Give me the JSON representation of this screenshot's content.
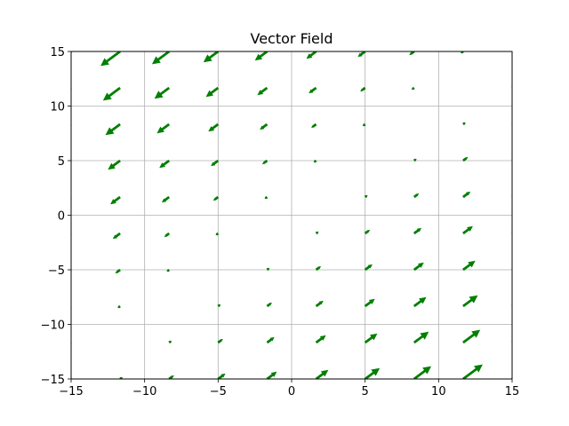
{
  "chart_data": {
    "type": "quiver",
    "title": "Vector Field",
    "xlabel": "",
    "ylabel": "",
    "xlim": [
      -15,
      15
    ],
    "ylim": [
      -15,
      15
    ],
    "x_ticks": [
      -15,
      -10,
      -5,
      0,
      5,
      10,
      15
    ],
    "y_ticks": [
      -15,
      -10,
      -5,
      0,
      5,
      10,
      15
    ],
    "x_tick_labels": [
      "−15",
      "−10",
      "−5",
      "0",
      "5",
      "10",
      "15"
    ],
    "y_tick_labels": [
      "−15",
      "−10",
      "−5",
      "0",
      "5",
      "10",
      "15"
    ],
    "grid": true,
    "arrow_color": "#007f00",
    "grid_x": [
      -15,
      -11.667,
      -8.333,
      -5,
      -1.667,
      1.667,
      5,
      8.333,
      11.667,
      15
    ],
    "grid_y": [
      -15,
      -11.667,
      -8.333,
      -5,
      -1.667,
      1.667,
      5,
      8.333,
      11.667,
      15
    ],
    "vector_rule": "u = v = (x - y) / 60 * 3, base at grid point"
  }
}
